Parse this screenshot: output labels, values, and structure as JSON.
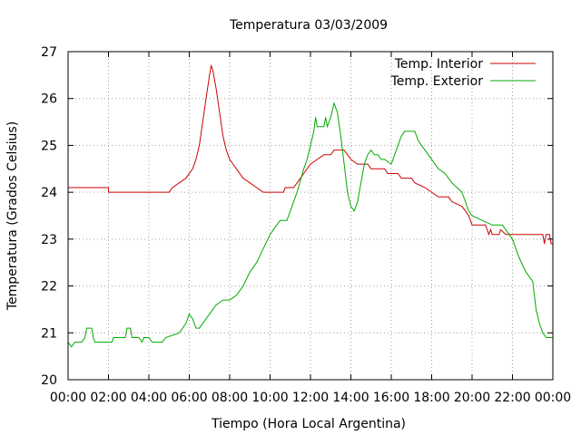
{
  "chart_data": {
    "type": "line",
    "title": "Temperatura 03/03/2009",
    "xlabel": "Tiempo (Hora Local Argentina)",
    "ylabel": "Temperatura (Grados Celsius)",
    "xlim": [
      "00:00",
      "00:00 (+1 día)"
    ],
    "ylim": [
      20,
      27
    ],
    "xtick_labels": [
      "00:00",
      "02:00",
      "04:00",
      "06:00",
      "08:00",
      "10:00",
      "12:00",
      "14:00",
      "16:00",
      "18:00",
      "20:00",
      "22:00",
      "00:00"
    ],
    "ytick_labels": [
      "20",
      "21",
      "22",
      "23",
      "24",
      "25",
      "26",
      "27"
    ],
    "grid": true,
    "legend_position": "top-right",
    "series": [
      {
        "name": "Temp. Interior",
        "color": "#cc0000",
        "points": [
          [
            "00:00",
            24.1
          ],
          [
            "02:00",
            24.1
          ],
          [
            "02:00",
            24.0
          ],
          [
            "04:00",
            24.0
          ],
          [
            "05:00",
            24.0
          ],
          [
            "05:10",
            24.1
          ],
          [
            "05:30",
            24.2
          ],
          [
            "05:50",
            24.3
          ],
          [
            "06:10",
            24.5
          ],
          [
            "06:20",
            24.7
          ],
          [
            "06:30",
            25.0
          ],
          [
            "06:40",
            25.5
          ],
          [
            "06:50",
            26.0
          ],
          [
            "07:00",
            26.5
          ],
          [
            "07:05",
            26.7
          ],
          [
            "07:10",
            26.6
          ],
          [
            "07:20",
            26.2
          ],
          [
            "07:30",
            25.7
          ],
          [
            "07:40",
            25.2
          ],
          [
            "07:50",
            24.9
          ],
          [
            "08:00",
            24.7
          ],
          [
            "08:20",
            24.5
          ],
          [
            "08:40",
            24.3
          ],
          [
            "09:00",
            24.2
          ],
          [
            "09:20",
            24.1
          ],
          [
            "09:40",
            24.0
          ],
          [
            "10:00",
            24.0
          ],
          [
            "10:40",
            24.0
          ],
          [
            "10:45",
            24.1
          ],
          [
            "11:10",
            24.1
          ],
          [
            "11:20",
            24.2
          ],
          [
            "11:40",
            24.4
          ],
          [
            "12:00",
            24.6
          ],
          [
            "12:20",
            24.7
          ],
          [
            "12:40",
            24.8
          ],
          [
            "13:00",
            24.8
          ],
          [
            "13:10",
            24.9
          ],
          [
            "13:40",
            24.9
          ],
          [
            "13:50",
            24.8
          ],
          [
            "14:00",
            24.7
          ],
          [
            "14:20",
            24.6
          ],
          [
            "14:50",
            24.6
          ],
          [
            "15:00",
            24.5
          ],
          [
            "15:40",
            24.5
          ],
          [
            "15:50",
            24.4
          ],
          [
            "16:20",
            24.4
          ],
          [
            "16:30",
            24.3
          ],
          [
            "17:00",
            24.3
          ],
          [
            "17:10",
            24.2
          ],
          [
            "17:40",
            24.1
          ],
          [
            "18:00",
            24.0
          ],
          [
            "18:20",
            23.9
          ],
          [
            "18:50",
            23.9
          ],
          [
            "19:00",
            23.8
          ],
          [
            "19:30",
            23.7
          ],
          [
            "19:50",
            23.5
          ],
          [
            "20:00",
            23.3
          ],
          [
            "20:40",
            23.3
          ],
          [
            "20:50",
            23.1
          ],
          [
            "20:55",
            23.2
          ],
          [
            "21:00",
            23.1
          ],
          [
            "21:20",
            23.1
          ],
          [
            "21:25",
            23.2
          ],
          [
            "21:40",
            23.1
          ],
          [
            "22:00",
            23.1
          ],
          [
            "23:30",
            23.1
          ],
          [
            "23:35",
            22.9
          ],
          [
            "23:40",
            23.1
          ],
          [
            "23:50",
            23.1
          ],
          [
            "23:55",
            22.9
          ],
          [
            "24:00",
            22.9
          ]
        ]
      },
      {
        "name": "Temp. Exterior",
        "color": "#00aa00",
        "points": [
          [
            "00:00",
            20.8
          ],
          [
            "00:10",
            20.7
          ],
          [
            "00:20",
            20.8
          ],
          [
            "00:40",
            20.8
          ],
          [
            "00:50",
            20.9
          ],
          [
            "00:55",
            21.1
          ],
          [
            "01:10",
            21.1
          ],
          [
            "01:15",
            20.9
          ],
          [
            "01:20",
            20.8
          ],
          [
            "02:10",
            20.8
          ],
          [
            "02:15",
            20.9
          ],
          [
            "02:50",
            20.9
          ],
          [
            "02:55",
            21.1
          ],
          [
            "03:05",
            21.1
          ],
          [
            "03:10",
            20.9
          ],
          [
            "03:30",
            20.9
          ],
          [
            "03:40",
            20.8
          ],
          [
            "03:45",
            20.9
          ],
          [
            "04:00",
            20.9
          ],
          [
            "04:10",
            20.8
          ],
          [
            "04:40",
            20.8
          ],
          [
            "04:50",
            20.9
          ],
          [
            "05:30",
            21.0
          ],
          [
            "05:50",
            21.2
          ],
          [
            "06:00",
            21.4
          ],
          [
            "06:10",
            21.3
          ],
          [
            "06:20",
            21.1
          ],
          [
            "06:30",
            21.1
          ],
          [
            "06:40",
            21.2
          ],
          [
            "07:00",
            21.4
          ],
          [
            "07:20",
            21.6
          ],
          [
            "07:40",
            21.7
          ],
          [
            "08:00",
            21.7
          ],
          [
            "08:20",
            21.8
          ],
          [
            "08:40",
            22.0
          ],
          [
            "09:00",
            22.3
          ],
          [
            "09:20",
            22.5
          ],
          [
            "09:40",
            22.8
          ],
          [
            "10:00",
            23.1
          ],
          [
            "10:20",
            23.3
          ],
          [
            "10:30",
            23.4
          ],
          [
            "10:50",
            23.4
          ],
          [
            "11:00",
            23.6
          ],
          [
            "11:20",
            24.0
          ],
          [
            "11:40",
            24.5
          ],
          [
            "11:50",
            24.7
          ],
          [
            "12:00",
            25.0
          ],
          [
            "12:10",
            25.3
          ],
          [
            "12:15",
            25.6
          ],
          [
            "12:20",
            25.4
          ],
          [
            "12:40",
            25.4
          ],
          [
            "12:45",
            25.6
          ],
          [
            "12:50",
            25.4
          ],
          [
            "13:00",
            25.6
          ],
          [
            "13:10",
            25.9
          ],
          [
            "13:20",
            25.7
          ],
          [
            "13:30",
            25.2
          ],
          [
            "13:40",
            24.6
          ],
          [
            "13:50",
            24.0
          ],
          [
            "14:00",
            23.7
          ],
          [
            "14:10",
            23.6
          ],
          [
            "14:20",
            23.8
          ],
          [
            "14:30",
            24.2
          ],
          [
            "14:40",
            24.6
          ],
          [
            "14:50",
            24.8
          ],
          [
            "15:00",
            24.9
          ],
          [
            "15:10",
            24.8
          ],
          [
            "15:20",
            24.8
          ],
          [
            "15:30",
            24.7
          ],
          [
            "15:40",
            24.7
          ],
          [
            "16:00",
            24.6
          ],
          [
            "16:10",
            24.8
          ],
          [
            "16:30",
            25.2
          ],
          [
            "16:40",
            25.3
          ],
          [
            "17:00",
            25.3
          ],
          [
            "17:10",
            25.3
          ],
          [
            "17:20",
            25.1
          ],
          [
            "17:40",
            24.9
          ],
          [
            "18:00",
            24.7
          ],
          [
            "18:20",
            24.5
          ],
          [
            "18:40",
            24.4
          ],
          [
            "19:00",
            24.2
          ],
          [
            "19:30",
            24.0
          ],
          [
            "19:50",
            23.6
          ],
          [
            "20:00",
            23.5
          ],
          [
            "20:30",
            23.4
          ],
          [
            "21:00",
            23.3
          ],
          [
            "21:30",
            23.3
          ],
          [
            "21:40",
            23.2
          ],
          [
            "22:00",
            23.0
          ],
          [
            "22:20",
            22.6
          ],
          [
            "22:40",
            22.3
          ],
          [
            "22:50",
            22.2
          ],
          [
            "23:00",
            22.1
          ],
          [
            "23:10",
            21.5
          ],
          [
            "23:20",
            21.2
          ],
          [
            "23:30",
            21.0
          ],
          [
            "23:40",
            20.9
          ],
          [
            "24:00",
            20.9
          ]
        ]
      }
    ]
  }
}
